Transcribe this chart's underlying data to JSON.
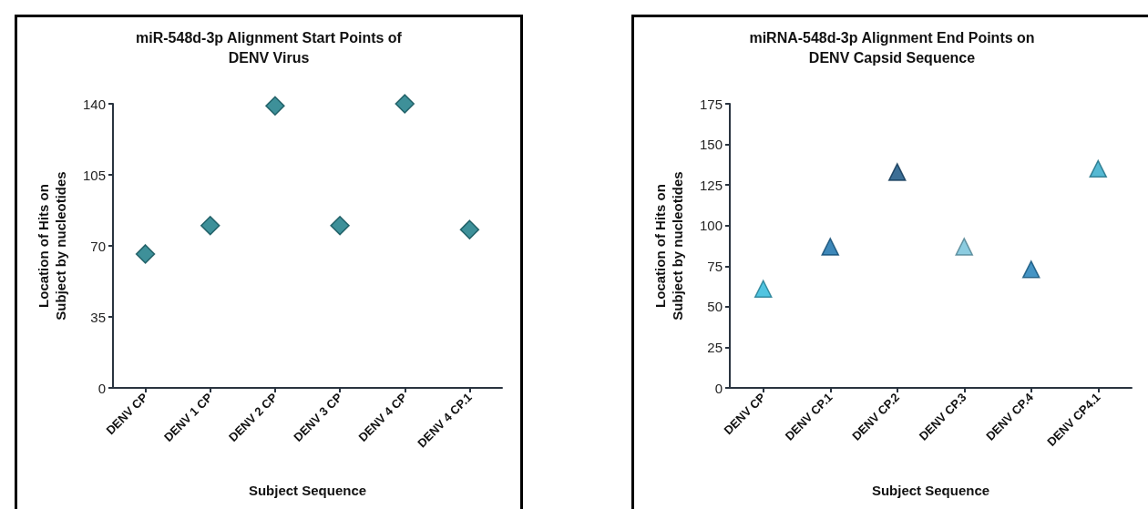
{
  "chart_data": [
    {
      "type": "scatter",
      "title": "miR-548d-3p Alignment Start Points of\nDENV Virus",
      "xlabel": "Subject Sequence",
      "ylabel": "Location of Hits on\nSubject by nucleotides",
      "categories": [
        "DENV CP",
        "DENV 1 CP",
        "DENV 2 CP",
        "DENV 3 CP",
        "DENV 4 CP",
        "DENV 4 CP.1"
      ],
      "values": [
        66,
        80,
        139,
        80,
        140,
        78
      ],
      "color": "#0e7480",
      "marker": "diamond",
      "ylim": [
        0,
        140
      ],
      "yticks": [
        0,
        35,
        70,
        105,
        140
      ],
      "grid": false
    },
    {
      "type": "scatter",
      "title": "miRNA-548d-3p Alignment End Points on\nDENV Capsid Sequence",
      "xlabel": "Subject Sequence",
      "ylabel": "Location of Hits on\nSubject by nucleotides",
      "categories": [
        "DENV CP",
        "DENV CP.1",
        "DENV CP.2",
        "DENV CP.3",
        "DENV CP.4",
        "DENV CP4.1"
      ],
      "values": [
        61,
        87,
        133,
        87,
        73,
        135
      ],
      "colors": [
        "#26b5d8",
        "#0e6aa8",
        "#0b4a7a",
        "#6fbfd8",
        "#1679b5",
        "#2aa8c8"
      ],
      "marker": "triangle",
      "ylim": [
        0,
        175
      ],
      "yticks": [
        0,
        25,
        50,
        75,
        100,
        125,
        150,
        175
      ],
      "grid": false
    }
  ]
}
